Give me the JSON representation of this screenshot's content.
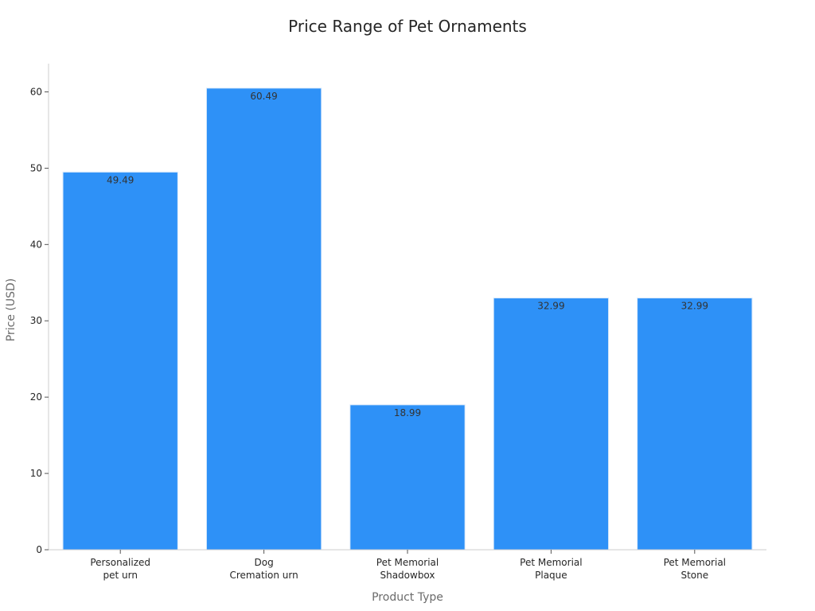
{
  "chart_data": {
    "type": "bar",
    "title": "Price Range of Pet Ornaments",
    "xlabel": "Product Type",
    "ylabel": "Price (USD)",
    "categories": [
      [
        "Personalized",
        "pet urn"
      ],
      [
        "Dog",
        "Cremation urn"
      ],
      [
        "Pet Memorial",
        "Shadowbox"
      ],
      [
        "Pet Memorial",
        "Plaque"
      ],
      [
        "Pet Memorial",
        "Stone"
      ]
    ],
    "values": [
      49.49,
      60.49,
      18.99,
      32.99,
      32.99
    ],
    "data_labels": [
      "49.49",
      "60.49",
      "18.99",
      "32.99",
      "32.99"
    ],
    "ylim": [
      0,
      63.7
    ],
    "yticks": [
      0,
      10,
      20,
      30,
      40,
      50,
      60
    ],
    "grid": false,
    "bar_color": "#2e91f7",
    "bar_edge_color": "#d8e9fb"
  }
}
